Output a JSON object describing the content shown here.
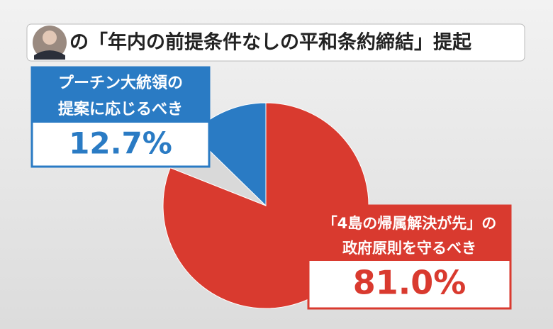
{
  "chart_data": {
    "type": "pie",
    "title": "の「年内の前提条件なしの平和条約締結」提起",
    "categories": [
      [
        "「4島の帰属解決が先」の",
        "政府原則を守るべき"
      ],
      null,
      [
        "プーチン大統領の",
        "提案に応じるべき"
      ]
    ],
    "values": [
      81.0,
      6.3,
      12.7
    ],
    "value_labels": [
      "81.0%",
      null,
      "12.7%"
    ],
    "colors": [
      "#d93a2f",
      "#d9d9d9",
      "#2a7bc4"
    ]
  }
}
